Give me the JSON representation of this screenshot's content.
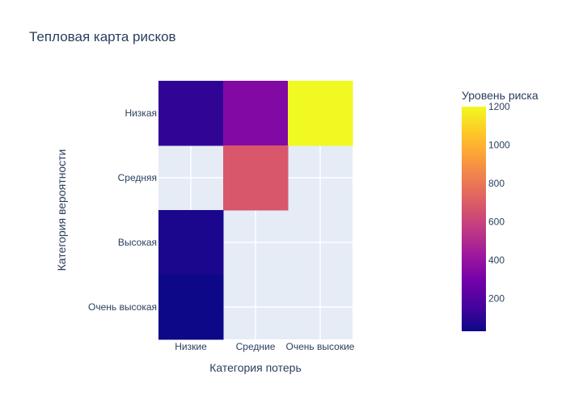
{
  "chart_data": {
    "type": "heatmap",
    "title": "Тепловая карта рисков",
    "xlabel": "Категория потерь",
    "ylabel": "Категория вероятности",
    "x_categories": [
      "Низкие",
      "Средние",
      "Очень высокие"
    ],
    "y_categories": [
      "Низкая",
      "Средняя",
      "Высокая",
      "Очень высокая"
    ],
    "cells": [
      {
        "y": "Низкая",
        "x": "Низкие",
        "value": 110
      },
      {
        "y": "Низкая",
        "x": "Средние",
        "value": 340
      },
      {
        "y": "Низкая",
        "x": "Очень высокие",
        "value": 1200
      },
      {
        "y": "Средняя",
        "x": "Средние",
        "value": 680
      },
      {
        "y": "Высокая",
        "x": "Низкие",
        "value": 60
      },
      {
        "y": "Очень высокая",
        "x": "Низкие",
        "value": 30
      }
    ],
    "colorbar": {
      "title": "Уровень риска",
      "range": [
        30,
        1200
      ],
      "ticks": [
        200,
        400,
        600,
        800,
        1000,
        1200
      ],
      "colorscale": [
        "#0d0887",
        "#46039f",
        "#7201a8",
        "#9c179e",
        "#bd3786",
        "#d8576b",
        "#ed7953",
        "#fb9f3a",
        "#fdca26",
        "#f0f921"
      ]
    },
    "grid": true,
    "plot_background": "#e5ecf6"
  }
}
